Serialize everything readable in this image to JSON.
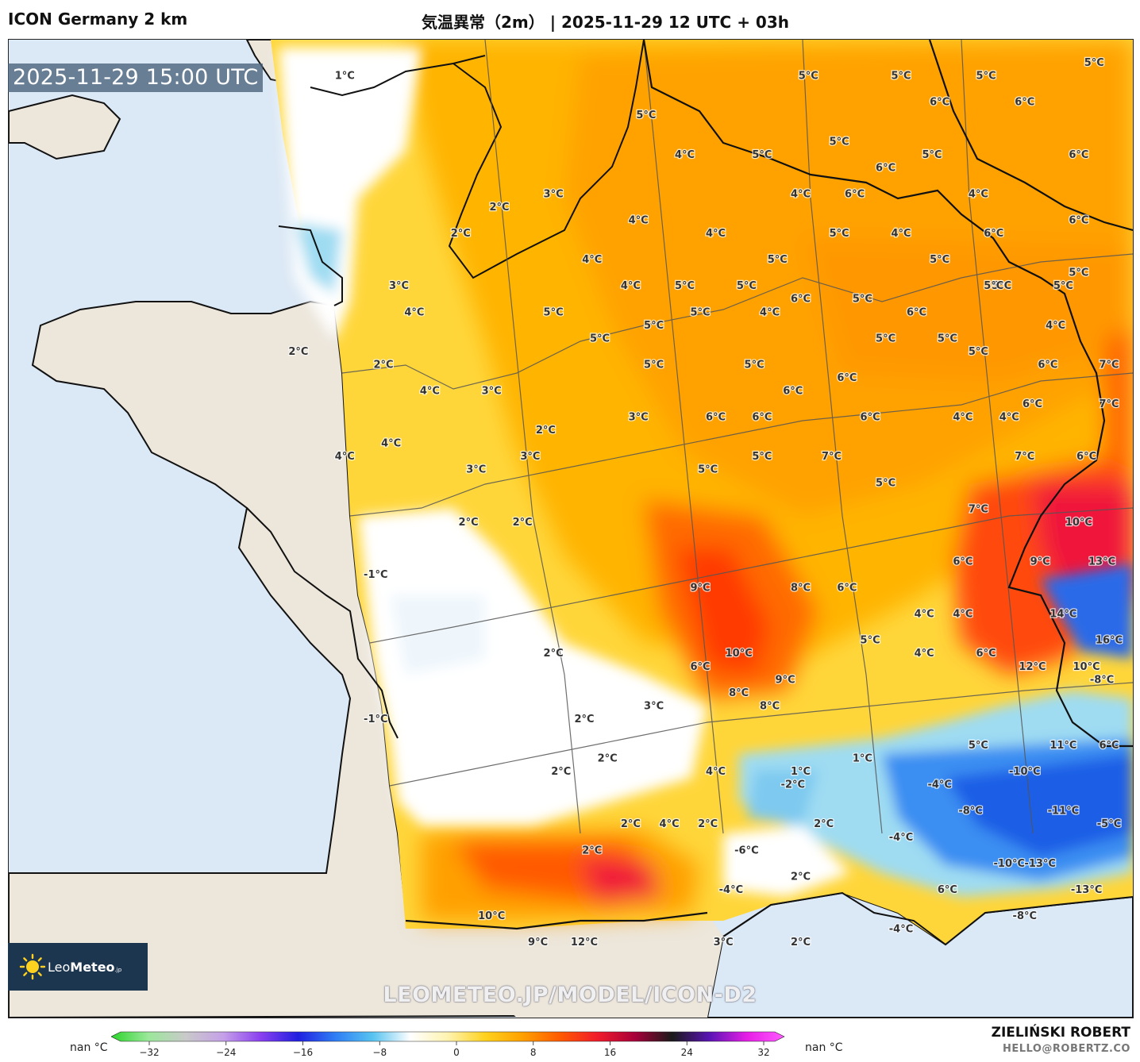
{
  "header": {
    "model_name": "ICON Germany 2 km",
    "title": "気温異常（2m） | 2025-11-29 12 UTC + 03h"
  },
  "timestamp_badge": "2025-11-29 15:00 UTC",
  "logo": {
    "brand_light": "Leo",
    "brand_bold": "Meteo",
    "brand_suffix": ".jp"
  },
  "watermark": "LEOMETEO.JP/MODEL/ICON-D2",
  "author": {
    "name": "ZIELIŃSKI ROBERT",
    "email": "HELLO@ROBERTZ.CO"
  },
  "colorbar": {
    "left_label": "nan °C",
    "right_label": "nan °C",
    "ticks": [
      -32,
      -24,
      -16,
      -8,
      0,
      8,
      16,
      24,
      32
    ],
    "tick_labels": [
      "−32",
      "−24",
      "−16",
      "−8",
      "0",
      "8",
      "16",
      "24",
      "32"
    ],
    "colors": [
      "#2bd42b",
      "#9be89b",
      "#c9c9c9",
      "#c5a0e8",
      "#8a3ff0",
      "#2020e0",
      "#2f7ef5",
      "#58c4f0",
      "#ffffff",
      "#fff3b0",
      "#ffd21f",
      "#ffa000",
      "#ff5a00",
      "#f01c2a",
      "#a8003a",
      "#1a1a1a",
      "#5a14b4",
      "#e61ee6",
      "#ff5aff"
    ]
  },
  "map_labels": [
    {
      "text": "1°C",
      "lon": -0.9,
      "lat": 50.7,
      "color": "#333333"
    },
    {
      "text": "5°C",
      "lon": 5.1,
      "lat": 50.7,
      "color": "#333333"
    },
    {
      "text": "5°C",
      "lon": 6.3,
      "lat": 50.7,
      "color": "#333333"
    },
    {
      "text": "5°C",
      "lon": 7.4,
      "lat": 50.7,
      "color": "#333333"
    },
    {
      "text": "5°C",
      "lon": 8.8,
      "lat": 50.8,
      "color": "#333333"
    },
    {
      "text": "6°C",
      "lon": 6.8,
      "lat": 50.5,
      "color": "#333333"
    },
    {
      "text": "6°C",
      "lon": 7.9,
      "lat": 50.5,
      "color": "#333333"
    },
    {
      "text": "5°C",
      "lon": 3.0,
      "lat": 50.4,
      "color": "#333333"
    },
    {
      "text": "4°C",
      "lon": 3.5,
      "lat": 50.1,
      "color": "#333333"
    },
    {
      "text": "5°C",
      "lon": 4.5,
      "lat": 50.1,
      "color": "#333333"
    },
    {
      "text": "5°C",
      "lon": 5.5,
      "lat": 50.2,
      "color": "#333333"
    },
    {
      "text": "5°C",
      "lon": 6.7,
      "lat": 50.1,
      "color": "#333333"
    },
    {
      "text": "6°C",
      "lon": 6.1,
      "lat": 50.0,
      "color": "#333333"
    },
    {
      "text": "6°C",
      "lon": 8.6,
      "lat": 50.1,
      "color": "#333333"
    },
    {
      "text": "4°C",
      "lon": 5.0,
      "lat": 49.8,
      "color": "#333333"
    },
    {
      "text": "6°C",
      "lon": 5.7,
      "lat": 49.8,
      "color": "#333333"
    },
    {
      "text": "4°C",
      "lon": 7.3,
      "lat": 49.8,
      "color": "#333333"
    },
    {
      "text": "6°C",
      "lon": 8.6,
      "lat": 49.6,
      "color": "#333333"
    },
    {
      "text": "2°C",
      "lon": 1.1,
      "lat": 49.7,
      "color": "#333333"
    },
    {
      "text": "3°C",
      "lon": 1.8,
      "lat": 49.8,
      "color": "#333333"
    },
    {
      "text": "4°C",
      "lon": 2.9,
      "lat": 49.6,
      "color": "#333333"
    },
    {
      "text": "5°C",
      "lon": 5.5,
      "lat": 49.5,
      "color": "#333333"
    },
    {
      "text": "4°C",
      "lon": 6.3,
      "lat": 49.5,
      "color": "#333333"
    },
    {
      "text": "6°C",
      "lon": 7.5,
      "lat": 49.5,
      "color": "#333333"
    },
    {
      "text": "2°C",
      "lon": 0.6,
      "lat": 49.5,
      "color": "#333333"
    },
    {
      "text": "4°C",
      "lon": 3.9,
      "lat": 49.5,
      "color": "#333333"
    },
    {
      "text": "5°C",
      "lon": 4.7,
      "lat": 49.3,
      "color": "#333333"
    },
    {
      "text": "5°C",
      "lon": 6.8,
      "lat": 49.3,
      "color": "#333333"
    },
    {
      "text": "5°C",
      "lon": 7.6,
      "lat": 49.1,
      "color": "#333333"
    },
    {
      "text": "5°C",
      "lon": 8.6,
      "lat": 49.2,
      "color": "#333333"
    },
    {
      "text": "4°C",
      "lon": 2.3,
      "lat": 49.3,
      "color": "#333333"
    },
    {
      "text": "3°C",
      "lon": -0.2,
      "lat": 49.1,
      "color": "#333333"
    },
    {
      "text": "4°C",
      "lon": 2.8,
      "lat": 49.1,
      "color": "#333333"
    },
    {
      "text": "5°C",
      "lon": 3.5,
      "lat": 49.1,
      "color": "#333333"
    },
    {
      "text": "5°C",
      "lon": 4.3,
      "lat": 49.1,
      "color": "#333333"
    },
    {
      "text": "6°C",
      "lon": 5.0,
      "lat": 49.0,
      "color": "#333333"
    },
    {
      "text": "5°C",
      "lon": 5.8,
      "lat": 49.0,
      "color": "#333333"
    },
    {
      "text": "6°C",
      "lon": 6.5,
      "lat": 48.9,
      "color": "#333333"
    },
    {
      "text": "5°C",
      "lon": 7.5,
      "lat": 49.1,
      "color": "#333333"
    },
    {
      "text": "5°C",
      "lon": 8.4,
      "lat": 49.1,
      "color": "#333333"
    },
    {
      "text": "4°C",
      "lon": 0.0,
      "lat": 48.9,
      "color": "#333333"
    },
    {
      "text": "5°C",
      "lon": 1.8,
      "lat": 48.9,
      "color": "#333333"
    },
    {
      "text": "5°C",
      "lon": 3.7,
      "lat": 48.9,
      "color": "#333333"
    },
    {
      "text": "4°C",
      "lon": 4.6,
      "lat": 48.9,
      "color": "#333333"
    },
    {
      "text": "4°C",
      "lon": 8.3,
      "lat": 48.8,
      "color": "#333333"
    },
    {
      "text": "5°C",
      "lon": 2.4,
      "lat": 48.7,
      "color": "#333333"
    },
    {
      "text": "5°C",
      "lon": 3.1,
      "lat": 48.8,
      "color": "#333333"
    },
    {
      "text": "5°C",
      "lon": 6.1,
      "lat": 48.7,
      "color": "#333333"
    },
    {
      "text": "5°C",
      "lon": 6.9,
      "lat": 48.7,
      "color": "#333333"
    },
    {
      "text": "5°C",
      "lon": 7.3,
      "lat": 48.6,
      "color": "#333333"
    },
    {
      "text": "2°C",
      "lon": -1.5,
      "lat": 48.6,
      "color": "#333333"
    },
    {
      "text": "2°C",
      "lon": -0.4,
      "lat": 48.5,
      "color": "#333333"
    },
    {
      "text": "5°C",
      "lon": 3.1,
      "lat": 48.5,
      "color": "#333333"
    },
    {
      "text": "5°C",
      "lon": 4.4,
      "lat": 48.5,
      "color": "#333333"
    },
    {
      "text": "6°C",
      "lon": 5.6,
      "lat": 48.4,
      "color": "#333333"
    },
    {
      "text": "6°C",
      "lon": 8.2,
      "lat": 48.5,
      "color": "#333333"
    },
    {
      "text": "7°C",
      "lon": 9.0,
      "lat": 48.5,
      "color": "#333333"
    },
    {
      "text": "4°C",
      "lon": 0.2,
      "lat": 48.3,
      "color": "#333333"
    },
    {
      "text": "3°C",
      "lon": 1.0,
      "lat": 48.3,
      "color": "#333333"
    },
    {
      "text": "6°C",
      "lon": 4.9,
      "lat": 48.3,
      "color": "#333333"
    },
    {
      "text": "6°C",
      "lon": 8.0,
      "lat": 48.2,
      "color": "#333333"
    },
    {
      "text": "7°C",
      "lon": 9.0,
      "lat": 48.2,
      "color": "#333333"
    },
    {
      "text": "2°C",
      "lon": 1.7,
      "lat": 48.0,
      "color": "#333333"
    },
    {
      "text": "3°C",
      "lon": 2.9,
      "lat": 48.1,
      "color": "#333333"
    },
    {
      "text": "6°C",
      "lon": 3.9,
      "lat": 48.1,
      "color": "#333333"
    },
    {
      "text": "6°C",
      "lon": 4.5,
      "lat": 48.1,
      "color": "#333333"
    },
    {
      "text": "6°C",
      "lon": 5.9,
      "lat": 48.1,
      "color": "#333333"
    },
    {
      "text": "4°C",
      "lon": 7.1,
      "lat": 48.1,
      "color": "#333333"
    },
    {
      "text": "4°C",
      "lon": 7.7,
      "lat": 48.1,
      "color": "#333333"
    },
    {
      "text": "4°C",
      "lon": -0.3,
      "lat": 47.9,
      "color": "#333333"
    },
    {
      "text": "4°C",
      "lon": -0.9,
      "lat": 47.8,
      "color": "#333333"
    },
    {
      "text": "7°C",
      "lon": 5.4,
      "lat": 47.8,
      "color": "#333333"
    },
    {
      "text": "7°C",
      "lon": 7.9,
      "lat": 47.8,
      "color": "#333333"
    },
    {
      "text": "5°C",
      "lon": 3.8,
      "lat": 47.7,
      "color": "#333333"
    },
    {
      "text": "5°C",
      "lon": 4.5,
      "lat": 47.8,
      "color": "#333333"
    },
    {
      "text": "3°C",
      "lon": 0.8,
      "lat": 47.7,
      "color": "#333333"
    },
    {
      "text": "3°C",
      "lon": 1.5,
      "lat": 47.8,
      "color": "#333333"
    },
    {
      "text": "6°C",
      "lon": 8.7,
      "lat": 47.8,
      "color": "#333333"
    },
    {
      "text": "5°C",
      "lon": 6.1,
      "lat": 47.6,
      "color": "#333333"
    },
    {
      "text": "2°C",
      "lon": 0.7,
      "lat": 47.3,
      "color": "#333333"
    },
    {
      "text": "2°C",
      "lon": 1.4,
      "lat": 47.3,
      "color": "#333333"
    },
    {
      "text": "7°C",
      "lon": 7.3,
      "lat": 47.4,
      "color": "#333333"
    },
    {
      "text": "10°C",
      "lon": 8.6,
      "lat": 47.3,
      "color": "#333333"
    },
    {
      "text": "6°C",
      "lon": 7.1,
      "lat": 47.0,
      "color": "#333333"
    },
    {
      "text": "9°C",
      "lon": 8.1,
      "lat": 47.0,
      "color": "#333333"
    },
    {
      "text": "13°C",
      "lon": 8.9,
      "lat": 47.0,
      "color": "#ffffff"
    },
    {
      "text": "-1°C",
      "lon": -0.5,
      "lat": 46.9,
      "color": "#333333"
    },
    {
      "text": "6°C",
      "lon": 5.6,
      "lat": 46.8,
      "color": "#333333"
    },
    {
      "text": "9°C",
      "lon": 3.7,
      "lat": 46.8,
      "color": "#333333"
    },
    {
      "text": "8°C",
      "lon": 5.0,
      "lat": 46.8,
      "color": "#333333"
    },
    {
      "text": "4°C",
      "lon": 6.6,
      "lat": 46.6,
      "color": "#333333"
    },
    {
      "text": "4°C",
      "lon": 7.1,
      "lat": 46.6,
      "color": "#333333"
    },
    {
      "text": "14°C",
      "lon": 8.4,
      "lat": 46.6,
      "color": "#ffffff"
    },
    {
      "text": "5°C",
      "lon": 5.9,
      "lat": 46.4,
      "color": "#333333"
    },
    {
      "text": "10°C",
      "lon": 4.2,
      "lat": 46.3,
      "color": "#333333"
    },
    {
      "text": "16°C",
      "lon": 9.3,
      "lat": 46.4,
      "color": "#ffffff"
    },
    {
      "text": "2°C",
      "lon": 1.8,
      "lat": 46.3,
      "color": "#333333"
    },
    {
      "text": "4°C",
      "lon": 6.6,
      "lat": 46.3,
      "color": "#333333"
    },
    {
      "text": "6°C",
      "lon": 7.4,
      "lat": 46.3,
      "color": "#333333"
    },
    {
      "text": "6°C",
      "lon": 3.7,
      "lat": 46.2,
      "color": "#333333"
    },
    {
      "text": "12°C",
      "lon": 8.0,
      "lat": 46.2,
      "color": "#333333"
    },
    {
      "text": "10°C",
      "lon": 8.7,
      "lat": 46.2,
      "color": "#ffffff"
    },
    {
      "text": "-8°C",
      "lon": 8.9,
      "lat": 46.1,
      "color": "#ffffff"
    },
    {
      "text": "9°C",
      "lon": 4.8,
      "lat": 46.1,
      "color": "#333333"
    },
    {
      "text": "8°C",
      "lon": 4.2,
      "lat": 46.0,
      "color": "#333333"
    },
    {
      "text": "8°C",
      "lon": 4.6,
      "lat": 45.9,
      "color": "#333333"
    },
    {
      "text": "-1°C",
      "lon": -0.5,
      "lat": 45.8,
      "color": "#333333"
    },
    {
      "text": "3°C",
      "lon": 3.1,
      "lat": 45.9,
      "color": "#333333"
    },
    {
      "text": "2°C",
      "lon": 2.2,
      "lat": 45.8,
      "color": "#333333"
    },
    {
      "text": "5°C",
      "lon": 7.3,
      "lat": 45.6,
      "color": "#333333"
    },
    {
      "text": "11°C",
      "lon": 8.4,
      "lat": 45.6,
      "color": "#333333"
    },
    {
      "text": "6°C",
      "lon": 9.0,
      "lat": 45.6,
      "color": "#333333"
    },
    {
      "text": "2°C",
      "lon": 2.5,
      "lat": 45.5,
      "color": "#333333"
    },
    {
      "text": "1°C",
      "lon": 5.8,
      "lat": 45.5,
      "color": "#333333"
    },
    {
      "text": "2°C",
      "lon": 1.9,
      "lat": 45.4,
      "color": "#333333"
    },
    {
      "text": "4°C",
      "lon": 3.9,
      "lat": 45.4,
      "color": "#333333"
    },
    {
      "text": "1°C",
      "lon": 5.0,
      "lat": 45.4,
      "color": "#333333"
    },
    {
      "text": "-4°C",
      "lon": 6.8,
      "lat": 45.3,
      "color": "#333333"
    },
    {
      "text": "-10°C",
      "lon": 7.9,
      "lat": 45.4,
      "color": "#ffffff"
    },
    {
      "text": "-2°C",
      "lon": 4.9,
      "lat": 45.3,
      "color": "#333333"
    },
    {
      "text": "-8°C",
      "lon": 7.2,
      "lat": 45.1,
      "color": "#333333"
    },
    {
      "text": "-11°C",
      "lon": 8.4,
      "lat": 45.1,
      "color": "#ffffff"
    },
    {
      "text": "2°C",
      "lon": 2.8,
      "lat": 45.0,
      "color": "#333333"
    },
    {
      "text": "4°C",
      "lon": 3.3,
      "lat": 45.0,
      "color": "#333333"
    },
    {
      "text": "2°C",
      "lon": 3.8,
      "lat": 45.0,
      "color": "#333333"
    },
    {
      "text": "2°C",
      "lon": 5.3,
      "lat": 45.0,
      "color": "#333333"
    },
    {
      "text": "-4°C",
      "lon": 6.3,
      "lat": 44.9,
      "color": "#333333"
    },
    {
      "text": "-5°C",
      "lon": 9.0,
      "lat": 45.0,
      "color": "#333333"
    },
    {
      "text": "2°C",
      "lon": 2.3,
      "lat": 44.8,
      "color": "#333333"
    },
    {
      "text": "-6°C",
      "lon": 4.3,
      "lat": 44.8,
      "color": "#333333"
    },
    {
      "text": "-10°C",
      "lon": 7.7,
      "lat": 44.7,
      "color": "#ffffff"
    },
    {
      "text": "-13°C",
      "lon": 8.1,
      "lat": 44.7,
      "color": "#ffffff"
    },
    {
      "text": "2°C",
      "lon": 5.0,
      "lat": 44.6,
      "color": "#333333"
    },
    {
      "text": "6°C",
      "lon": 6.9,
      "lat": 44.5,
      "color": "#333333"
    },
    {
      "text": "-13°C",
      "lon": 8.7,
      "lat": 44.5,
      "color": "#ffffff"
    },
    {
      "text": "-4°C",
      "lon": 4.1,
      "lat": 44.5,
      "color": "#ffffff"
    },
    {
      "text": "10°C",
      "lon": 1.0,
      "lat": 44.3,
      "color": "#ffffff"
    },
    {
      "text": "-8°C",
      "lon": 7.9,
      "lat": 44.3,
      "color": "#ffffff"
    },
    {
      "text": "-4°C",
      "lon": 6.3,
      "lat": 44.2,
      "color": "#333333"
    },
    {
      "text": "2°C",
      "lon": 5.0,
      "lat": 44.1,
      "color": "#333333"
    },
    {
      "text": "9°C",
      "lon": 1.6,
      "lat": 44.1,
      "color": "#333333"
    },
    {
      "text": "12°C",
      "lon": 2.2,
      "lat": 44.1,
      "color": "#ffffff"
    },
    {
      "text": "3°C",
      "lon": 4.0,
      "lat": 44.1,
      "color": "#333333"
    }
  ]
}
